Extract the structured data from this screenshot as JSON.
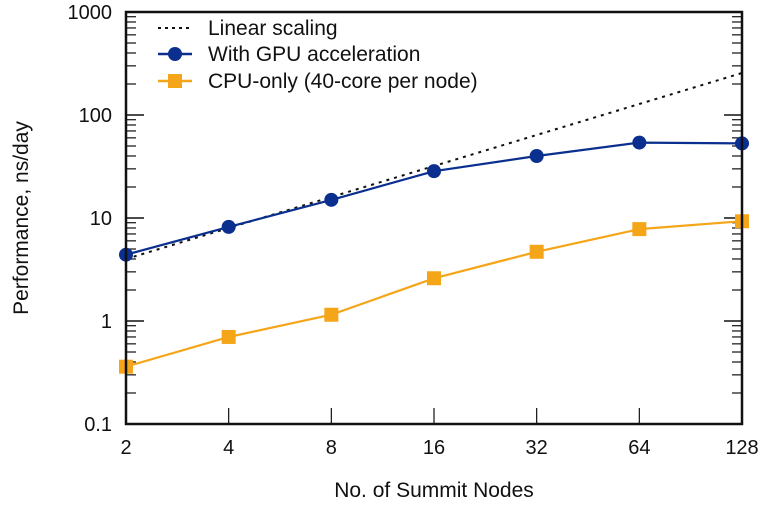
{
  "chart_data": {
    "type": "line",
    "title": "",
    "xlabel": "No. of Summit Nodes",
    "ylabel": "Performance, ns/day",
    "xscale": "log2",
    "yscale": "log10",
    "x": [
      2,
      4,
      8,
      16,
      32,
      64,
      128
    ],
    "xticks": [
      "2",
      "4",
      "8",
      "16",
      "32",
      "64",
      "128"
    ],
    "yticks": [
      "0.1",
      "1",
      "10",
      "100",
      "1000"
    ],
    "xlim": [
      2,
      128
    ],
    "ylim": [
      0.1,
      1000
    ],
    "grid": false,
    "legend_position": "top-left",
    "series": [
      {
        "name": "Linear scaling",
        "style": "dotted",
        "color": "#111111",
        "marker": "none",
        "values": [
          4.0,
          8.0,
          16.0,
          32.0,
          64.0,
          128.0,
          256.0
        ]
      },
      {
        "name": "With GPU acceleration",
        "style": "solid",
        "color": "#0b2f8f",
        "marker": "circle",
        "values": [
          4.4,
          8.2,
          15,
          28.5,
          40,
          54,
          53
        ]
      },
      {
        "name": "CPU-only (40-core per node)",
        "style": "solid",
        "color": "#f5a518",
        "marker": "square",
        "values": [
          0.36,
          0.7,
          1.15,
          2.6,
          4.7,
          7.8,
          9.3
        ]
      }
    ]
  }
}
